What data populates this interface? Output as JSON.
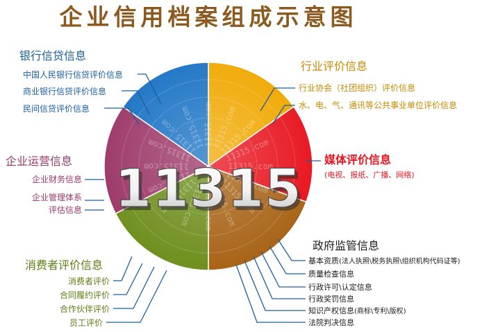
{
  "title": "企业信用档案组成示意图",
  "center_label": "11315",
  "watermark": "11315.com",
  "colors": {
    "title": "#8c5a1e",
    "bank": "#1a73c4",
    "industry": "#f0a800",
    "media": "#e8141e",
    "gov": "#a86418",
    "consumer": "#6f8f1e",
    "ops": "#9c3868",
    "line": "#1a5e9e"
  },
  "sections": {
    "bank": {
      "heading": "银行信贷信息",
      "items": [
        "中国人民银行信贷评价信息",
        "商业银行信贷评价信息",
        "民间信贷评价信息"
      ]
    },
    "industry": {
      "heading": "行业评价信息",
      "items": [
        "行业协会（社团组织）评价信息",
        "水、电、气、通讯等公共事业单位评价信息"
      ]
    },
    "media": {
      "heading": "媒体评价信息",
      "note": "(电视、报纸、广播、网络)"
    },
    "ops": {
      "heading": "企业运营信息",
      "items": [
        "企业财务信息",
        "企业管理体系",
        "评估信息"
      ]
    },
    "consumer": {
      "heading": "消费者评价信息",
      "items": [
        "消费者评价",
        "合同履约评价",
        "合作伙伴评价",
        "员工评价"
      ]
    },
    "gov": {
      "heading": "政府监管信息",
      "items": [
        {
          "label": "基本资质",
          "note": "(法人执照\\税务执照\\组织机构代码证等)"
        },
        {
          "label": "质量检查信息",
          "note": ""
        },
        {
          "label": "行政许可\\认定信息",
          "note": ""
        },
        {
          "label": "行政奖罚信息",
          "note": ""
        },
        {
          "label": "知识产权信息",
          "note": "(商标\\专利\\版权)"
        },
        {
          "label": "法院判决信息",
          "note": ""
        }
      ]
    }
  }
}
